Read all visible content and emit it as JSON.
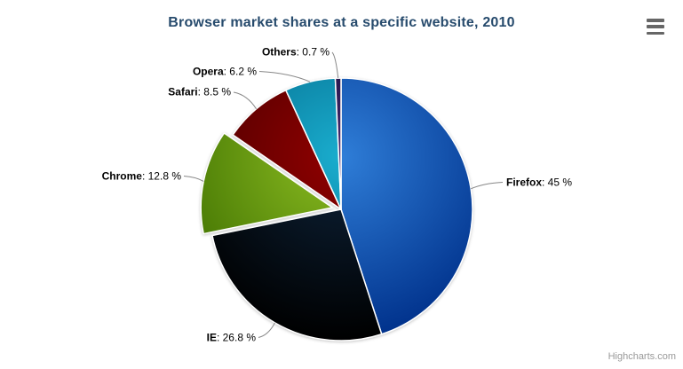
{
  "chart": {
    "credits": "Highcharts.com",
    "icons": {
      "context_menu": "hamburger-icon"
    }
  },
  "chart_data": {
    "type": "pie",
    "title": "Browser market shares at a specific website, 2010",
    "unit": "%",
    "legend": "none",
    "start_angle_deg": 0,
    "direction": "clockwise",
    "title_color": "#274b6d",
    "connector_color": "#888888",
    "border_color": "#ffffff",
    "points": [
      {
        "name": "Firefox",
        "value": 45,
        "label": "Firefox: 45 %",
        "color": "#2f7ed8",
        "sliced": false
      },
      {
        "name": "IE",
        "value": 26.8,
        "label": "IE: 26.8 %",
        "color": "#0d233a",
        "sliced": false
      },
      {
        "name": "Chrome",
        "value": 12.8,
        "label": "Chrome: 12.8 %",
        "color": "#8bbc21",
        "sliced": true
      },
      {
        "name": "Safari",
        "value": 8.5,
        "label": "Safari: 8.5 %",
        "color": "#910000",
        "sliced": false
      },
      {
        "name": "Opera",
        "value": 6.2,
        "label": "Opera: 6.2 %",
        "color": "#1aadce",
        "sliced": false
      },
      {
        "name": "Others",
        "value": 0.7,
        "label": "Others: 0.7 %",
        "color": "#492970",
        "sliced": false
      }
    ]
  }
}
